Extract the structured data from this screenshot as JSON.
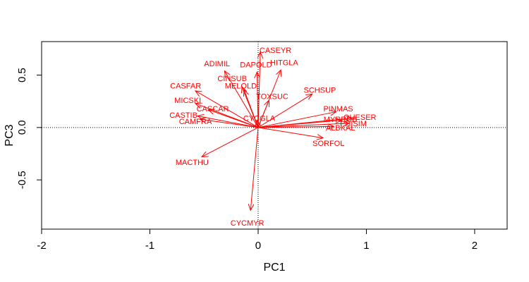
{
  "chart_data": {
    "type": "scatter",
    "subtype": "pca-loadings-biplot",
    "title": "",
    "xlabel": "PC1",
    "ylabel": "PC3",
    "xlim": [
      -2.0,
      2.3
    ],
    "ylim": [
      -0.97,
      0.82
    ],
    "xticks": [
      -2,
      -1,
      0,
      1,
      2
    ],
    "xtick_labels": [
      "-2",
      "-1",
      "0",
      "1",
      "2"
    ],
    "yticks": [
      -0.5,
      0.0,
      0.5
    ],
    "ytick_labels": [
      "-0.5",
      "0.0",
      "0.5"
    ],
    "grid": false,
    "reference_lines": {
      "x": 0,
      "y": 0,
      "style": "dotted"
    },
    "vector_color": "#ff0000",
    "vectors": [
      {
        "label": "CASEYR",
        "x": 0.02,
        "y": 0.72,
        "label_x": 0.16,
        "label_y": 0.74
      },
      {
        "label": "DAPOLD",
        "x": -0.01,
        "y": 0.53,
        "label_x": -0.02,
        "label_y": 0.6
      },
      {
        "label": "ADIMIL",
        "x": -0.31,
        "y": 0.54,
        "label_x": -0.38,
        "label_y": 0.61
      },
      {
        "label": "HITGLA",
        "x": 0.21,
        "y": 0.55,
        "label_x": 0.24,
        "label_y": 0.62
      },
      {
        "label": "CINSUB",
        "x": -0.15,
        "y": 0.39,
        "label_x": -0.24,
        "label_y": 0.47
      },
      {
        "label": "MELOLD",
        "x": -0.13,
        "y": 0.36,
        "label_x": -0.16,
        "label_y": 0.4
      },
      {
        "label": "TOXSUC",
        "x": 0.1,
        "y": 0.26,
        "label_x": 0.13,
        "label_y": 0.3
      },
      {
        "label": "SCHSUP",
        "x": 0.5,
        "y": 0.32,
        "label_x": 0.57,
        "label_y": 0.36
      },
      {
        "label": "CASFAR",
        "x": -0.58,
        "y": 0.35,
        "label_x": -0.67,
        "label_y": 0.4
      },
      {
        "label": "MICSKI",
        "x": -0.58,
        "y": 0.23,
        "label_x": -0.65,
        "label_y": 0.26
      },
      {
        "label": "CASCAR",
        "x": -0.46,
        "y": 0.17,
        "label_x": -0.42,
        "label_y": 0.18
      },
      {
        "label": "CASTIB",
        "x": -0.56,
        "y": 0.11,
        "label_x": -0.69,
        "label_y": 0.12
      },
      {
        "label": "CAMFRA",
        "x": -0.54,
        "y": 0.08,
        "label_x": -0.58,
        "label_y": 0.06
      },
      {
        "label": "CYCGLA",
        "x": -0.01,
        "y": 0.07,
        "label_x": 0.01,
        "label_y": 0.09
      },
      {
        "label": "PINMAS",
        "x": 0.72,
        "y": 0.15,
        "label_x": 0.74,
        "label_y": 0.18
      },
      {
        "label": "MYRRUB",
        "x": 0.77,
        "y": 0.07,
        "label_x": 0.76,
        "label_y": 0.08
      },
      {
        "label": "QUESER",
        "x": 0.87,
        "y": 0.09,
        "label_x": 0.94,
        "label_y": 0.1
      },
      {
        "label": "PHISIM",
        "x": 0.84,
        "y": 0.04,
        "label_x": 0.88,
        "label_y": 0.04
      },
      {
        "label": "ALBKAL",
        "x": 0.7,
        "y": 0.01,
        "label_x": 0.76,
        "label_y": 0.0
      },
      {
        "label": "SORFOL",
        "x": 0.6,
        "y": -0.1,
        "label_x": 0.65,
        "label_y": -0.15
      },
      {
        "label": "MACTHU",
        "x": -0.52,
        "y": -0.28,
        "label_x": -0.61,
        "label_y": -0.33
      },
      {
        "label": "CYCMYR",
        "x": -0.07,
        "y": -0.79,
        "label_x": -0.1,
        "label_y": -0.91
      }
    ]
  }
}
